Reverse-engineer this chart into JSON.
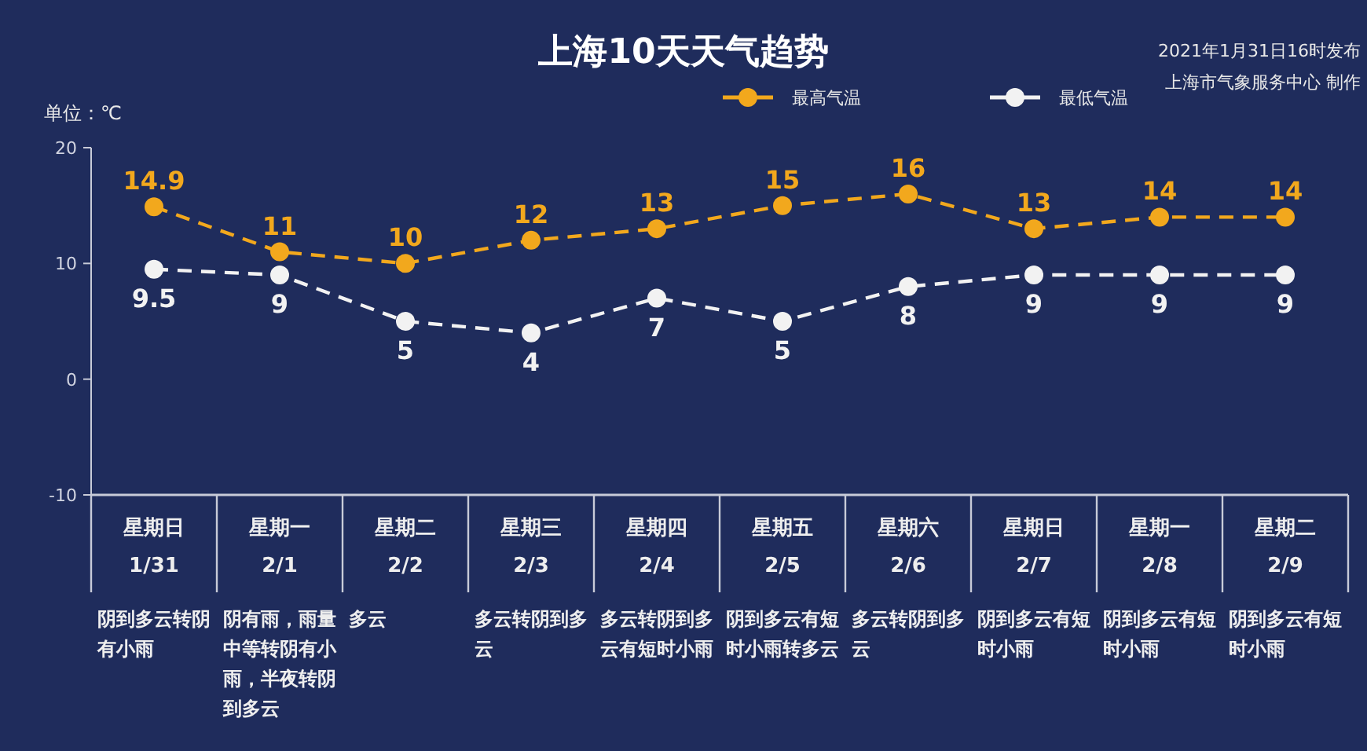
{
  "chart_data": {
    "type": "line",
    "title": "上海10天天气趋势",
    "ylabel": "单位：℃",
    "categories": [
      "星期日\n1/31",
      "星期一\n2/1",
      "星期二\n2/2",
      "星期三\n2/3",
      "星期四\n2/4",
      "星期五\n2/5",
      "星期六\n2/6",
      "星期日\n2/7",
      "星期一\n2/8",
      "星期二\n2/9"
    ],
    "series": [
      {
        "name": "最高气温",
        "color": "#f2a81d",
        "values": [
          14.9,
          11,
          10,
          12,
          13,
          15,
          16,
          13,
          14,
          14
        ]
      },
      {
        "name": "最低气温",
        "color": "#f2f2f2",
        "values": [
          9.5,
          9,
          5,
          4,
          7,
          5,
          8,
          9,
          9,
          9
        ]
      }
    ],
    "ylim": [
      -10,
      20
    ],
    "yticks": [
      -10,
      0,
      10,
      20
    ],
    "marker": "circle",
    "line_style": "dashed",
    "data_labels": true,
    "legend": "top",
    "annotations": [
      "阴到多云转阴有小雨",
      "阴有雨，雨量中等转阴有小雨，半夜转阴到多云",
      "多云",
      "多云转阴到多云",
      "多云转阴到多云有短时小雨",
      "阴到多云有短时小雨转多云",
      "多云转阴到多云",
      "阴到多云有短时小雨",
      "阴到多云有短时小雨",
      "阴到多云有短时小雨",
      "2021年1月31日16时发布",
      "上海市气象服务中心 制作"
    ]
  }
}
